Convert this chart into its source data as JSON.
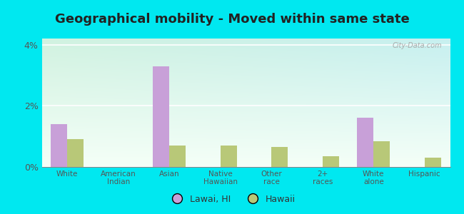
{
  "title": "Geographical mobility - Moved within same state",
  "categories": [
    "White",
    "American\nIndian",
    "Asian",
    "Native\nHawaiian",
    "Other\nrace",
    "2+\nraces",
    "White\nalone",
    "Hispanic"
  ],
  "lawai_values": [
    1.4,
    0.0,
    3.3,
    0.0,
    0.0,
    0.0,
    1.6,
    0.0
  ],
  "hawaii_values": [
    0.9,
    0.0,
    0.7,
    0.7,
    0.65,
    0.35,
    0.85,
    0.3
  ],
  "lawai_color": "#c8a0d8",
  "hawaii_color": "#b8c878",
  "outer_bg": "#00e8f0",
  "ylim": [
    0,
    4.2
  ],
  "yticks": [
    0,
    2,
    4
  ],
  "ytick_labels": [
    "0%",
    "2%",
    "4%"
  ],
  "bar_width": 0.32,
  "legend_labels": [
    "Lawai, HI",
    "Hawaii"
  ],
  "title_fontsize": 13,
  "watermark": "City-Data.com"
}
